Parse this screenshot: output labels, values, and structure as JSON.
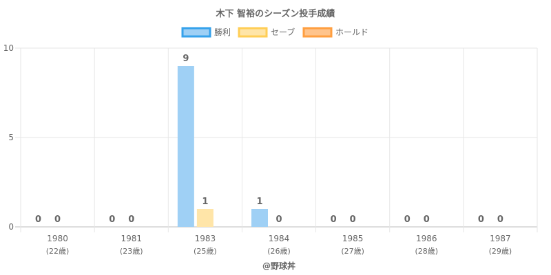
{
  "chart_data": {
    "type": "bar",
    "title": "木下 智裕のシーズン投手成績",
    "categories": [
      "1980",
      "1981",
      "1983",
      "1984",
      "1985",
      "1986",
      "1987"
    ],
    "category_sublabels": [
      "(22歳)",
      "(23歳)",
      "(25歳)",
      "(26歳)",
      "(27歳)",
      "(28歳)",
      "(29歳)"
    ],
    "series": [
      {
        "name": "勝利",
        "values": [
          0,
          0,
          9,
          1,
          0,
          0,
          0
        ],
        "fill": "#9fd0f5",
        "stroke": "#36a2eb"
      },
      {
        "name": "セーブ",
        "values": [
          0,
          0,
          1,
          0,
          0,
          0,
          0
        ],
        "fill": "#ffe5a8",
        "stroke": "#ffce56"
      },
      {
        "name": "ホールド",
        "values": [
          0,
          0,
          0,
          0,
          0,
          0,
          0
        ],
        "fill": "#ffc48c",
        "stroke": "#ff9f40"
      }
    ],
    "value_labels": [
      [
        "0",
        "0",
        "9",
        "1",
        "0",
        "0",
        "0"
      ],
      [
        "0",
        "0",
        "1",
        "0",
        "0",
        "0",
        "0"
      ]
    ],
    "ylim": [
      0,
      10
    ],
    "yticks": [
      0,
      5,
      10
    ],
    "grid": true,
    "legend_position": "top",
    "credit": "@野球丼"
  }
}
